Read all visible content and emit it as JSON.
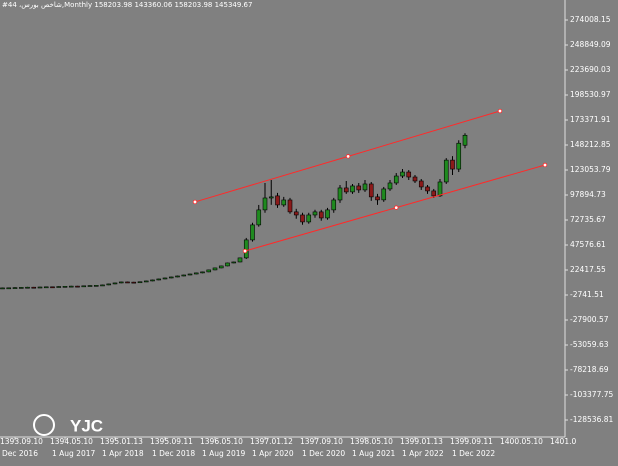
{
  "chart_data": {
    "type": "candlestick",
    "title": "#44 ،شاخص بورس,Monthly 158203.98 143360.06 158203.98 145349.67",
    "watermark": "YJC",
    "up_color": "#1f8a1f",
    "down_color": "#8b1a1a",
    "x": [
      -2,
      -1,
      0,
      1,
      2,
      3,
      4,
      5,
      6,
      7,
      8,
      9,
      10,
      11,
      12,
      13,
      14,
      15,
      16,
      17,
      18,
      19,
      20,
      21,
      22,
      23,
      24,
      25,
      26,
      27,
      28,
      29,
      30,
      31,
      32,
      33,
      34,
      35,
      36,
      37,
      38,
      39,
      40,
      41,
      42,
      43,
      44,
      45,
      46,
      47,
      48,
      49,
      50,
      51,
      52,
      53,
      54,
      55,
      56,
      57,
      58,
      59,
      60,
      61,
      62,
      63,
      64,
      65,
      66,
      67,
      68,
      69,
      70,
      71,
      72
    ],
    "open": [
      4300,
      4400,
      4500,
      4700,
      4900,
      5100,
      5000,
      5300,
      5500,
      5400,
      5800,
      6000,
      6200,
      6100,
      6500,
      6800,
      7000,
      7400,
      8400,
      9400,
      10400,
      10200,
      10000,
      10600,
      11400,
      12400,
      13400,
      14400,
      15400,
      16400,
      17400,
      18400,
      19500,
      20500,
      22500,
      24500,
      26500,
      29500,
      30500,
      34600,
      52700,
      67800,
      82900,
      94900,
      97000,
      87900,
      92900,
      80900,
      77800,
      70800,
      77800,
      80900,
      74800,
      82900,
      92900,
      105000,
      101000,
      107000,
      103000,
      109000,
      96000,
      93000,
      104000,
      110000,
      117000,
      121000,
      116000,
      112000,
      106000,
      102000,
      97000,
      111000,
      133000,
      124000,
      148000
    ],
    "high": [
      4700,
      4800,
      5000,
      5200,
      5400,
      5400,
      5600,
      5800,
      5800,
      6100,
      6300,
      6500,
      6500,
      6800,
      7100,
      7300,
      7700,
      8700,
      9700,
      10700,
      10700,
      10500,
      10900,
      11700,
      12700,
      13700,
      14700,
      15700,
      16700,
      17700,
      18700,
      19800,
      20800,
      22800,
      24800,
      26800,
      29800,
      30800,
      34900,
      54700,
      70000,
      87900,
      110000,
      113000,
      100000,
      96000,
      95000,
      84000,
      80000,
      80000,
      83000,
      83000,
      85000,
      95000,
      108000,
      112000,
      109000,
      110000,
      113000,
      111000,
      99000,
      106000,
      113000,
      120000,
      124000,
      123000,
      118000,
      114000,
      108000,
      104000,
      114000,
      135000,
      137000,
      153000,
      160000
    ],
    "low": [
      4000,
      4100,
      4200,
      4400,
      4600,
      4700,
      4700,
      5000,
      5100,
      5100,
      5500,
      5700,
      5800,
      5800,
      6200,
      6500,
      6700,
      7100,
      8100,
      9100,
      9900,
      9700,
      9700,
      10300,
      11100,
      12100,
      13100,
      14100,
      15100,
      16100,
      17100,
      18100,
      19200,
      20200,
      22200,
      24200,
      26200,
      29200,
      30200,
      33500,
      51000,
      66000,
      80000,
      88000,
      85000,
      86000,
      79000,
      74000,
      68000,
      69000,
      75000,
      72000,
      73000,
      80000,
      90000,
      99000,
      99000,
      100000,
      101000,
      92000,
      88000,
      91000,
      102000,
      108000,
      115000,
      113000,
      110000,
      103000,
      99000,
      95000,
      96000,
      109000,
      118000,
      121000,
      145000
    ],
    "close": [
      4400,
      4500,
      4700,
      4900,
      5100,
      5000,
      5300,
      5500,
      5400,
      5800,
      6000,
      6200,
      6100,
      6500,
      6800,
      7000,
      7400,
      8400,
      9400,
      10400,
      10200,
      10000,
      10600,
      11400,
      12400,
      13400,
      14400,
      15400,
      16400,
      17400,
      18400,
      19500,
      20500,
      22500,
      24500,
      26500,
      29500,
      30500,
      34600,
      52700,
      67800,
      82900,
      94900,
      96000,
      87900,
      92900,
      80900,
      77800,
      70800,
      77800,
      80900,
      74800,
      82900,
      92900,
      105000,
      101000,
      107000,
      103000,
      109000,
      96000,
      93000,
      104000,
      110000,
      117000,
      121000,
      116000,
      112000,
      106000,
      102000,
      97000,
      111000,
      133000,
      124000,
      150000,
      158000
    ],
    "xlim": [
      -2.4,
      88
    ],
    "ylim": [
      -145644,
      294135
    ],
    "yticks": [
      274008.15,
      248849.09,
      223690.03,
      198530.97,
      173371.91,
      148212.85,
      123053.79,
      97894.73,
      72735.67,
      47576.61,
      22417.55,
      -2741.51,
      -27900.57,
      -53059.63,
      -78218.69,
      -103377.75,
      -128536.81
    ],
    "xticks": [
      {
        "value": 0,
        "label": "Dec 2016"
      },
      {
        "value": 8,
        "label": "1 Aug 2017"
      },
      {
        "value": 16,
        "label": "1 Apr 2018"
      },
      {
        "value": 24,
        "label": "1 Dec 2018"
      },
      {
        "value": 32,
        "label": "1 Aug 2019"
      },
      {
        "value": 40,
        "label": "1 Apr 2020"
      },
      {
        "value": 48,
        "label": "1 Dec 2020"
      },
      {
        "value": 56,
        "label": "1 Aug 2021"
      },
      {
        "value": 64,
        "label": "1 Apr 2022"
      },
      {
        "value": 72,
        "label": "1 Dec 2022"
      }
    ],
    "x2ticks": [
      {
        "value": 0,
        "label": "1393.09.10"
      },
      {
        "value": 8,
        "label": "1394.05.10"
      },
      {
        "value": 16,
        "label": "1395.01.13"
      },
      {
        "value": 24,
        "label": "1395.09.11"
      },
      {
        "value": 32,
        "label": "1396.05.10"
      },
      {
        "value": 40,
        "label": "1397.01.12"
      },
      {
        "value": 48,
        "label": "1397.09.10"
      },
      {
        "value": 56,
        "label": "1398.05.10"
      },
      {
        "value": 64,
        "label": "1399.01.13"
      },
      {
        "value": 72,
        "label": "1399.09.11"
      },
      {
        "value": 80,
        "label": "1400.05.10"
      },
      {
        "value": 88,
        "label": "1401.0"
      }
    ],
    "trendline_color": "#ff2a2a",
    "trendlines": [
      {
        "x": [
          28.8,
          53.3,
          77.6
        ],
        "y": [
          90900,
          136800,
          182400
        ]
      },
      {
        "x": [
          36.8,
          61,
          84.8
        ],
        "y": [
          41500,
          85200,
          128100
        ]
      }
    ]
  }
}
